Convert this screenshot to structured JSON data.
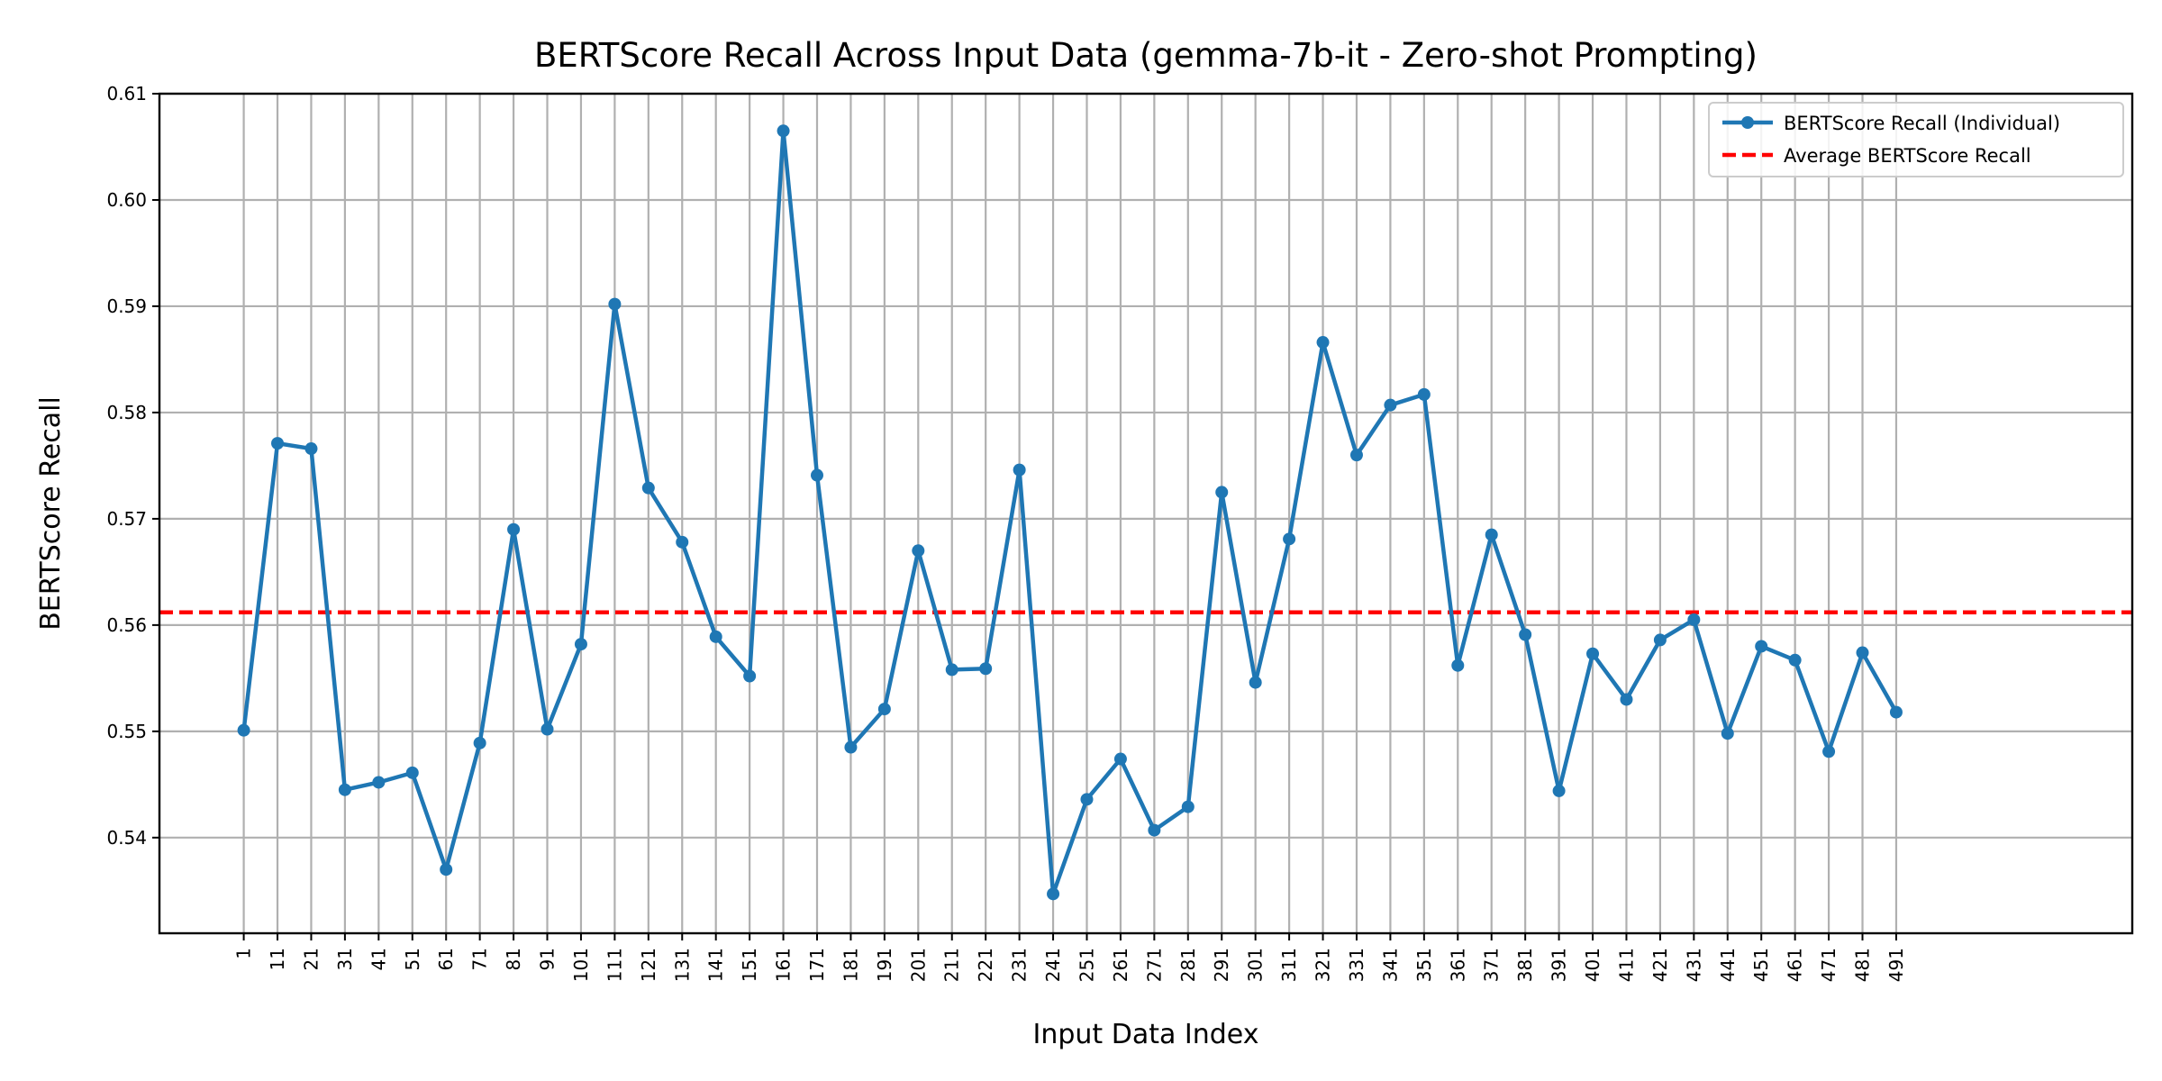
{
  "chart_data": {
    "type": "line",
    "title": "BERTScore Recall Across Input Data (gemma-7b-it - Zero-shot Prompting)",
    "xlabel": "Input Data Index",
    "ylabel": "BERTScore Recall",
    "xlim": [
      -24,
      561
    ],
    "ylim": [
      0.531,
      0.61
    ],
    "x_ticks": [
      1,
      11,
      21,
      31,
      41,
      51,
      61,
      71,
      81,
      91,
      101,
      111,
      121,
      131,
      141,
      151,
      161,
      171,
      181,
      191,
      201,
      211,
      221,
      231,
      241,
      251,
      261,
      271,
      281,
      291,
      301,
      311,
      321,
      331,
      341,
      351,
      361,
      371,
      381,
      391,
      401,
      411,
      421,
      431,
      441,
      451,
      461,
      471,
      481,
      491
    ],
    "y_ticks": [
      0.54,
      0.55,
      0.56,
      0.57,
      0.58,
      0.59,
      0.6,
      0.61
    ],
    "y_tick_labels": [
      "0.54",
      "0.55",
      "0.56",
      "0.57",
      "0.58",
      "0.59",
      "0.60",
      "0.61"
    ],
    "grid": true,
    "legend_position": "top-right",
    "series": [
      {
        "name": "BERTScore Recall (Individual)",
        "color": "#1f77b4",
        "style": "line-with-markers",
        "x": [
          1,
          11,
          21,
          31,
          41,
          51,
          61,
          71,
          81,
          91,
          101,
          111,
          121,
          131,
          141,
          151,
          161,
          171,
          181,
          191,
          201,
          211,
          221,
          231,
          241,
          251,
          261,
          271,
          281,
          291,
          301,
          311,
          321,
          331,
          341,
          351,
          361,
          371,
          381,
          391,
          401,
          411,
          421,
          431,
          441,
          451,
          461,
          471,
          481,
          491
        ],
        "values": [
          0.5501,
          0.5771,
          0.5766,
          0.5445,
          0.5452,
          0.5461,
          0.537,
          0.5489,
          0.569,
          0.5502,
          0.5582,
          0.5902,
          0.5729,
          0.5678,
          0.5589,
          0.5552,
          0.6065,
          0.5741,
          0.5485,
          0.5521,
          0.567,
          0.5558,
          0.5559,
          0.5746,
          0.5347,
          0.5436,
          0.5474,
          0.5407,
          0.5429,
          0.5725,
          0.5546,
          0.5681,
          0.5866,
          0.576,
          0.5807,
          0.5817,
          0.5562,
          0.5685,
          0.5591,
          0.5444,
          0.5573,
          0.553,
          0.5586,
          0.5605,
          0.5498,
          0.558,
          0.5567,
          0.5481,
          0.5574,
          0.5518
        ]
      },
      {
        "name": "Average BERTScore Recall",
        "color": "#ff0000",
        "style": "dashed",
        "value": 0.5612
      }
    ]
  }
}
